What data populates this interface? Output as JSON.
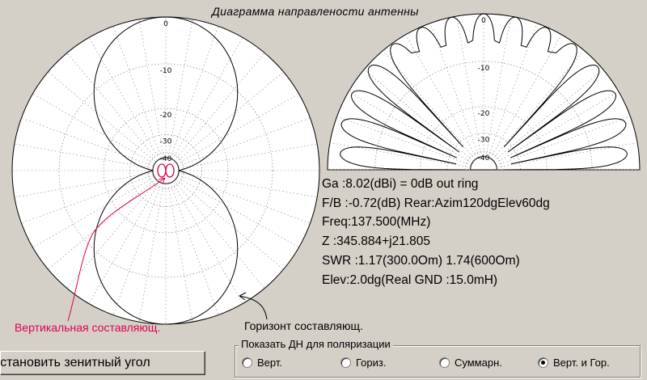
{
  "title": "Диаграмма направлености антенны",
  "azimuth": {
    "ring_labels": [
      "0",
      "-10",
      "-20",
      "-30",
      "-40"
    ]
  },
  "elevation": {
    "ring_labels": [
      "0",
      "-10",
      "-20",
      "-30",
      "-40"
    ]
  },
  "info": {
    "ga": "Ga  :8.02(dBi) = 0dB  out ring",
    "fb": "F/B :-0.72(dB) Rear:Azim120dgElev60dg",
    "freq": "Freq:137.500(MHz)",
    "z": "Z   :345.884+j21.805",
    "swr": "SWR :1.17(300.0Om) 1.74(600Om)",
    "elev": "Elev:2.0dg(Real GND :15.0mH)"
  },
  "labels": {
    "vertical": "Вертикальная составляющ.",
    "horizontal": "Горизонт составляющ."
  },
  "zenith_button": "Установить зенитный угол",
  "polarization": {
    "legend": "Показать ДН для поляризации",
    "options": [
      {
        "label": "Верт.",
        "selected": false
      },
      {
        "label": "Гориз.",
        "selected": false
      },
      {
        "label": "Суммарн.",
        "selected": false
      },
      {
        "label": "Верт. и Гор.",
        "selected": true
      }
    ]
  },
  "colors": {
    "background": "#d4d0c8",
    "plot_bg": "#ffffff",
    "grid": "#808080",
    "trace_horizontal": "#000000",
    "trace_vertical": "#e0004e",
    "vertical_label": "#e0004e"
  }
}
